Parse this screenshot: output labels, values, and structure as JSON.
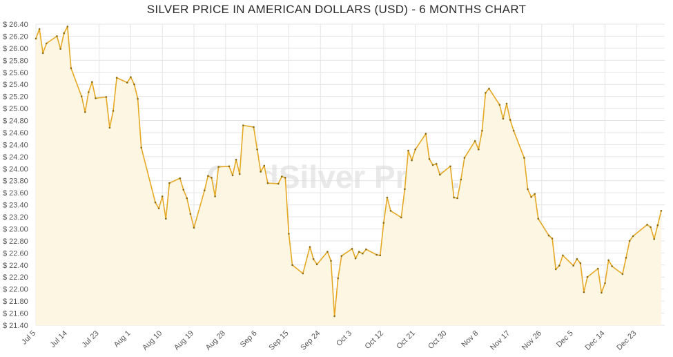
{
  "page": {
    "title": "SILVER PRICE IN AMERICAN DOLLARS (USD) - 6 MONTHS CHART",
    "watermark": "GoldSilver Price.eu"
  },
  "chart_data": {
    "type": "area",
    "title": "SILVER PRICE IN AMERICAN DOLLARS (USD) - 6 MONTHS CHART",
    "xlabel": "",
    "ylabel": "",
    "ylim": [
      21.4,
      26.4
    ],
    "y_tick_step": 0.2,
    "y_tick_prefix": "$ ",
    "grid": true,
    "line_color": "#e5a823",
    "fill_color": "#fdf6e3",
    "x_ticks": [
      "Jul 5",
      "Jul 14",
      "Jul 23",
      "Aug 1",
      "Aug 10",
      "Aug 19",
      "Aug 28",
      "Sep 6",
      "Sep 15",
      "Sep 24",
      "Oct 3",
      "Oct 12",
      "Oct 21",
      "Oct 30",
      "Nov 8",
      "Nov 17",
      "Nov 26",
      "Dec 5",
      "Dec 14",
      "Dec 23"
    ],
    "x_tick_day_offsets": [
      0,
      9,
      18,
      27,
      36,
      45,
      54,
      63,
      72,
      81,
      90,
      99,
      108,
      117,
      126,
      135,
      144,
      153,
      162,
      171
    ],
    "x_day_range": [
      0,
      179
    ],
    "series": [
      {
        "points": [
          [
            0,
            26.16
          ],
          [
            1,
            26.32
          ],
          [
            2,
            25.92
          ],
          [
            3,
            26.08
          ],
          [
            6,
            26.2
          ],
          [
            7,
            25.99
          ],
          [
            8,
            26.25
          ],
          [
            9,
            26.36
          ],
          [
            10,
            25.67
          ],
          [
            13,
            25.2
          ],
          [
            14,
            24.94
          ],
          [
            15,
            25.27
          ],
          [
            16,
            25.44
          ],
          [
            17,
            25.17
          ],
          [
            20,
            25.19
          ],
          [
            21,
            24.68
          ],
          [
            22,
            24.96
          ],
          [
            23,
            25.51
          ],
          [
            26,
            25.43
          ],
          [
            27,
            25.52
          ],
          [
            28,
            25.4
          ],
          [
            29,
            25.16
          ],
          [
            30,
            24.35
          ],
          [
            34,
            23.44
          ],
          [
            35,
            23.34
          ],
          [
            36,
            23.54
          ],
          [
            37,
            23.17
          ],
          [
            38,
            23.76
          ],
          [
            41,
            23.84
          ],
          [
            42,
            23.65
          ],
          [
            43,
            23.51
          ],
          [
            44,
            23.25
          ],
          [
            45,
            23.02
          ],
          [
            48,
            23.64
          ],
          [
            49,
            23.88
          ],
          [
            50,
            23.85
          ],
          [
            51,
            23.54
          ],
          [
            52,
            24.03
          ],
          [
            55,
            24.04
          ],
          [
            56,
            23.89
          ],
          [
            57,
            24.15
          ],
          [
            58,
            23.91
          ],
          [
            59,
            24.72
          ],
          [
            62,
            24.69
          ],
          [
            63,
            24.32
          ],
          [
            64,
            23.95
          ],
          [
            65,
            24.05
          ],
          [
            66,
            23.76
          ],
          [
            69,
            23.75
          ],
          [
            70,
            23.87
          ],
          [
            71,
            23.85
          ],
          [
            72,
            22.92
          ],
          [
            73,
            22.4
          ],
          [
            76,
            22.26
          ],
          [
            78,
            22.7
          ],
          [
            79,
            22.5
          ],
          [
            80,
            22.41
          ],
          [
            83,
            22.62
          ],
          [
            84,
            22.47
          ],
          [
            85,
            21.55
          ],
          [
            86,
            22.18
          ],
          [
            87,
            22.55
          ],
          [
            90,
            22.67
          ],
          [
            91,
            22.51
          ],
          [
            92,
            22.62
          ],
          [
            93,
            22.59
          ],
          [
            94,
            22.66
          ],
          [
            97,
            22.57
          ],
          [
            98,
            22.56
          ],
          [
            99,
            23.1
          ],
          [
            100,
            23.52
          ],
          [
            101,
            23.3
          ],
          [
            104,
            23.19
          ],
          [
            105,
            23.66
          ],
          [
            106,
            24.3
          ],
          [
            107,
            24.14
          ],
          [
            108,
            24.32
          ],
          [
            111,
            24.58
          ],
          [
            112,
            24.16
          ],
          [
            113,
            24.06
          ],
          [
            114,
            24.08
          ],
          [
            115,
            23.9
          ],
          [
            118,
            24.04
          ],
          [
            119,
            23.52
          ],
          [
            120,
            23.51
          ],
          [
            121,
            23.82
          ],
          [
            122,
            24.18
          ],
          [
            125,
            24.46
          ],
          [
            126,
            24.32
          ],
          [
            127,
            24.63
          ],
          [
            128,
            25.26
          ],
          [
            129,
            25.33
          ],
          [
            132,
            25.06
          ],
          [
            133,
            24.83
          ],
          [
            134,
            25.08
          ],
          [
            135,
            24.81
          ],
          [
            136,
            24.63
          ],
          [
            139,
            24.18
          ],
          [
            140,
            23.66
          ],
          [
            141,
            23.53
          ],
          [
            142,
            23.58
          ],
          [
            143,
            23.17
          ],
          [
            146,
            22.89
          ],
          [
            147,
            22.84
          ],
          [
            148,
            22.33
          ],
          [
            149,
            22.39
          ],
          [
            150,
            22.56
          ],
          [
            153,
            22.39
          ],
          [
            154,
            22.5
          ],
          [
            155,
            22.43
          ],
          [
            156,
            21.95
          ],
          [
            157,
            22.2
          ],
          [
            160,
            22.34
          ],
          [
            161,
            21.94
          ],
          [
            162,
            22.1
          ],
          [
            163,
            22.48
          ],
          [
            164,
            22.38
          ],
          [
            167,
            22.25
          ],
          [
            168,
            22.52
          ],
          [
            169,
            22.8
          ],
          [
            170,
            22.88
          ],
          [
            174,
            23.07
          ],
          [
            175,
            23.03
          ],
          [
            176,
            22.83
          ],
          [
            177,
            23.06
          ],
          [
            178,
            23.3
          ]
        ]
      }
    ]
  }
}
